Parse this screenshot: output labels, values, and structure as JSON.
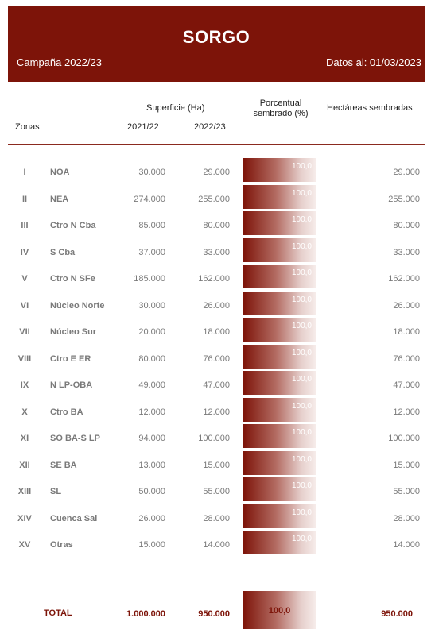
{
  "header": {
    "title": "SORGO",
    "campaign": "Campaña 2022/23",
    "date": "Datos al: 01/03/2023"
  },
  "columns": {
    "zonas": "Zonas",
    "superficie": "Superficie (Ha)",
    "year1": "2021/22",
    "year2": "2022/23",
    "porcentual_line1": "Porcentual",
    "porcentual_line2": "sembrado (%)",
    "hectareas": "Hectáreas sembradas"
  },
  "rows": [
    {
      "num": "I",
      "zone": "NOA",
      "v1": "30.000",
      "v2": "29.000",
      "pct": "100,0",
      "ha": "29.000"
    },
    {
      "num": "II",
      "zone": "NEA",
      "v1": "274.000",
      "v2": "255.000",
      "pct": "100,0",
      "ha": "255.000"
    },
    {
      "num": "III",
      "zone": "Ctro N Cba",
      "v1": "85.000",
      "v2": "80.000",
      "pct": "100,0",
      "ha": "80.000"
    },
    {
      "num": "IV",
      "zone": "S Cba",
      "v1": "37.000",
      "v2": "33.000",
      "pct": "100,0",
      "ha": "33.000"
    },
    {
      "num": "V",
      "zone": "Ctro N SFe",
      "v1": "185.000",
      "v2": "162.000",
      "pct": "100,0",
      "ha": "162.000"
    },
    {
      "num": "VI",
      "zone": "Núcleo Norte",
      "v1": "30.000",
      "v2": "26.000",
      "pct": "100,0",
      "ha": "26.000"
    },
    {
      "num": "VII",
      "zone": "Núcleo Sur",
      "v1": "20.000",
      "v2": "18.000",
      "pct": "100,0",
      "ha": "18.000"
    },
    {
      "num": "VIII",
      "zone": "Ctro E ER",
      "v1": "80.000",
      "v2": "76.000",
      "pct": "100,0",
      "ha": "76.000"
    },
    {
      "num": "IX",
      "zone": "N LP-OBA",
      "v1": "49.000",
      "v2": "47.000",
      "pct": "100,0",
      "ha": "47.000"
    },
    {
      "num": "X",
      "zone": "Ctro BA",
      "v1": "12.000",
      "v2": "12.000",
      "pct": "100,0",
      "ha": "12.000"
    },
    {
      "num": "XI",
      "zone": "SO BA-S LP",
      "v1": "94.000",
      "v2": "100.000",
      "pct": "100,0",
      "ha": "100.000"
    },
    {
      "num": "XII",
      "zone": "SE BA",
      "v1": "13.000",
      "v2": "15.000",
      "pct": "100,0",
      "ha": "15.000"
    },
    {
      "num": "XIII",
      "zone": "SL",
      "v1": "50.000",
      "v2": "55.000",
      "pct": "100,0",
      "ha": "55.000"
    },
    {
      "num": "XIV",
      "zone": "Cuenca Sal",
      "v1": "26.000",
      "v2": "28.000",
      "pct": "100,0",
      "ha": "28.000"
    },
    {
      "num": "XV",
      "zone": "Otras",
      "v1": "15.000",
      "v2": "14.000",
      "pct": "100,0",
      "ha": "14.000"
    }
  ],
  "total": {
    "label": "TOTAL",
    "v1": "1.000.000",
    "v2": "950.000",
    "pct": "100,0",
    "ha": "950.000"
  },
  "colors": {
    "accent": "#7d1409",
    "text_muted": "#7a7a7a"
  }
}
